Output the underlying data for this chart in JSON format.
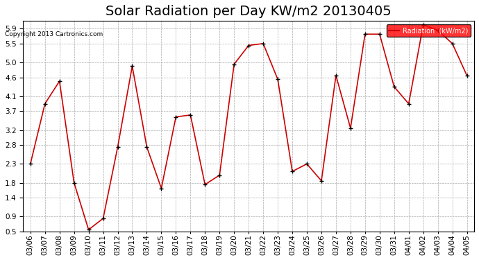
{
  "title": "Solar Radiation per Day KW/m2 20130405",
  "copyright_text": "Copyright 2013 Cartronics.com",
  "legend_label": "Radiation  (kW/m2)",
  "dates": [
    "03/06",
    "03/07",
    "03/08",
    "03/09",
    "03/10",
    "03/11",
    "03/12",
    "03/13",
    "03/14",
    "03/15",
    "03/16",
    "03/17",
    "03/18",
    "03/19",
    "03/20",
    "03/21",
    "03/22",
    "03/23",
    "03/24",
    "03/25",
    "03/26",
    "03/27",
    "03/28",
    "03/29",
    "03/30",
    "03/31",
    "04/01",
    "04/02",
    "04/03",
    "04/04",
    "04/05"
  ],
  "values": [
    2.3,
    3.9,
    4.5,
    1.8,
    0.55,
    0.85,
    2.75,
    4.9,
    2.75,
    1.65,
    3.55,
    3.6,
    1.75,
    2.0,
    4.95,
    5.45,
    5.5,
    4.55,
    2.1,
    2.3,
    1.85,
    4.65,
    3.25,
    5.75,
    5.75,
    4.35,
    3.9,
    6.0,
    5.85,
    5.5,
    4.65
  ],
  "line_color": "#cc0000",
  "marker_color": "#000000",
  "background_color": "#ffffff",
  "plot_bg_color": "#ffffff",
  "grid_color": "#aaaaaa",
  "legend_bg": "#ff0000",
  "legend_text_color": "#ffffff",
  "title_fontsize": 14,
  "tick_fontsize": 7.5,
  "ylim": [
    0.5,
    6.1
  ],
  "yticks": [
    0.5,
    0.9,
    1.4,
    1.8,
    2.3,
    2.8,
    3.2,
    3.7,
    4.1,
    4.6,
    5.0,
    5.5,
    5.9
  ]
}
